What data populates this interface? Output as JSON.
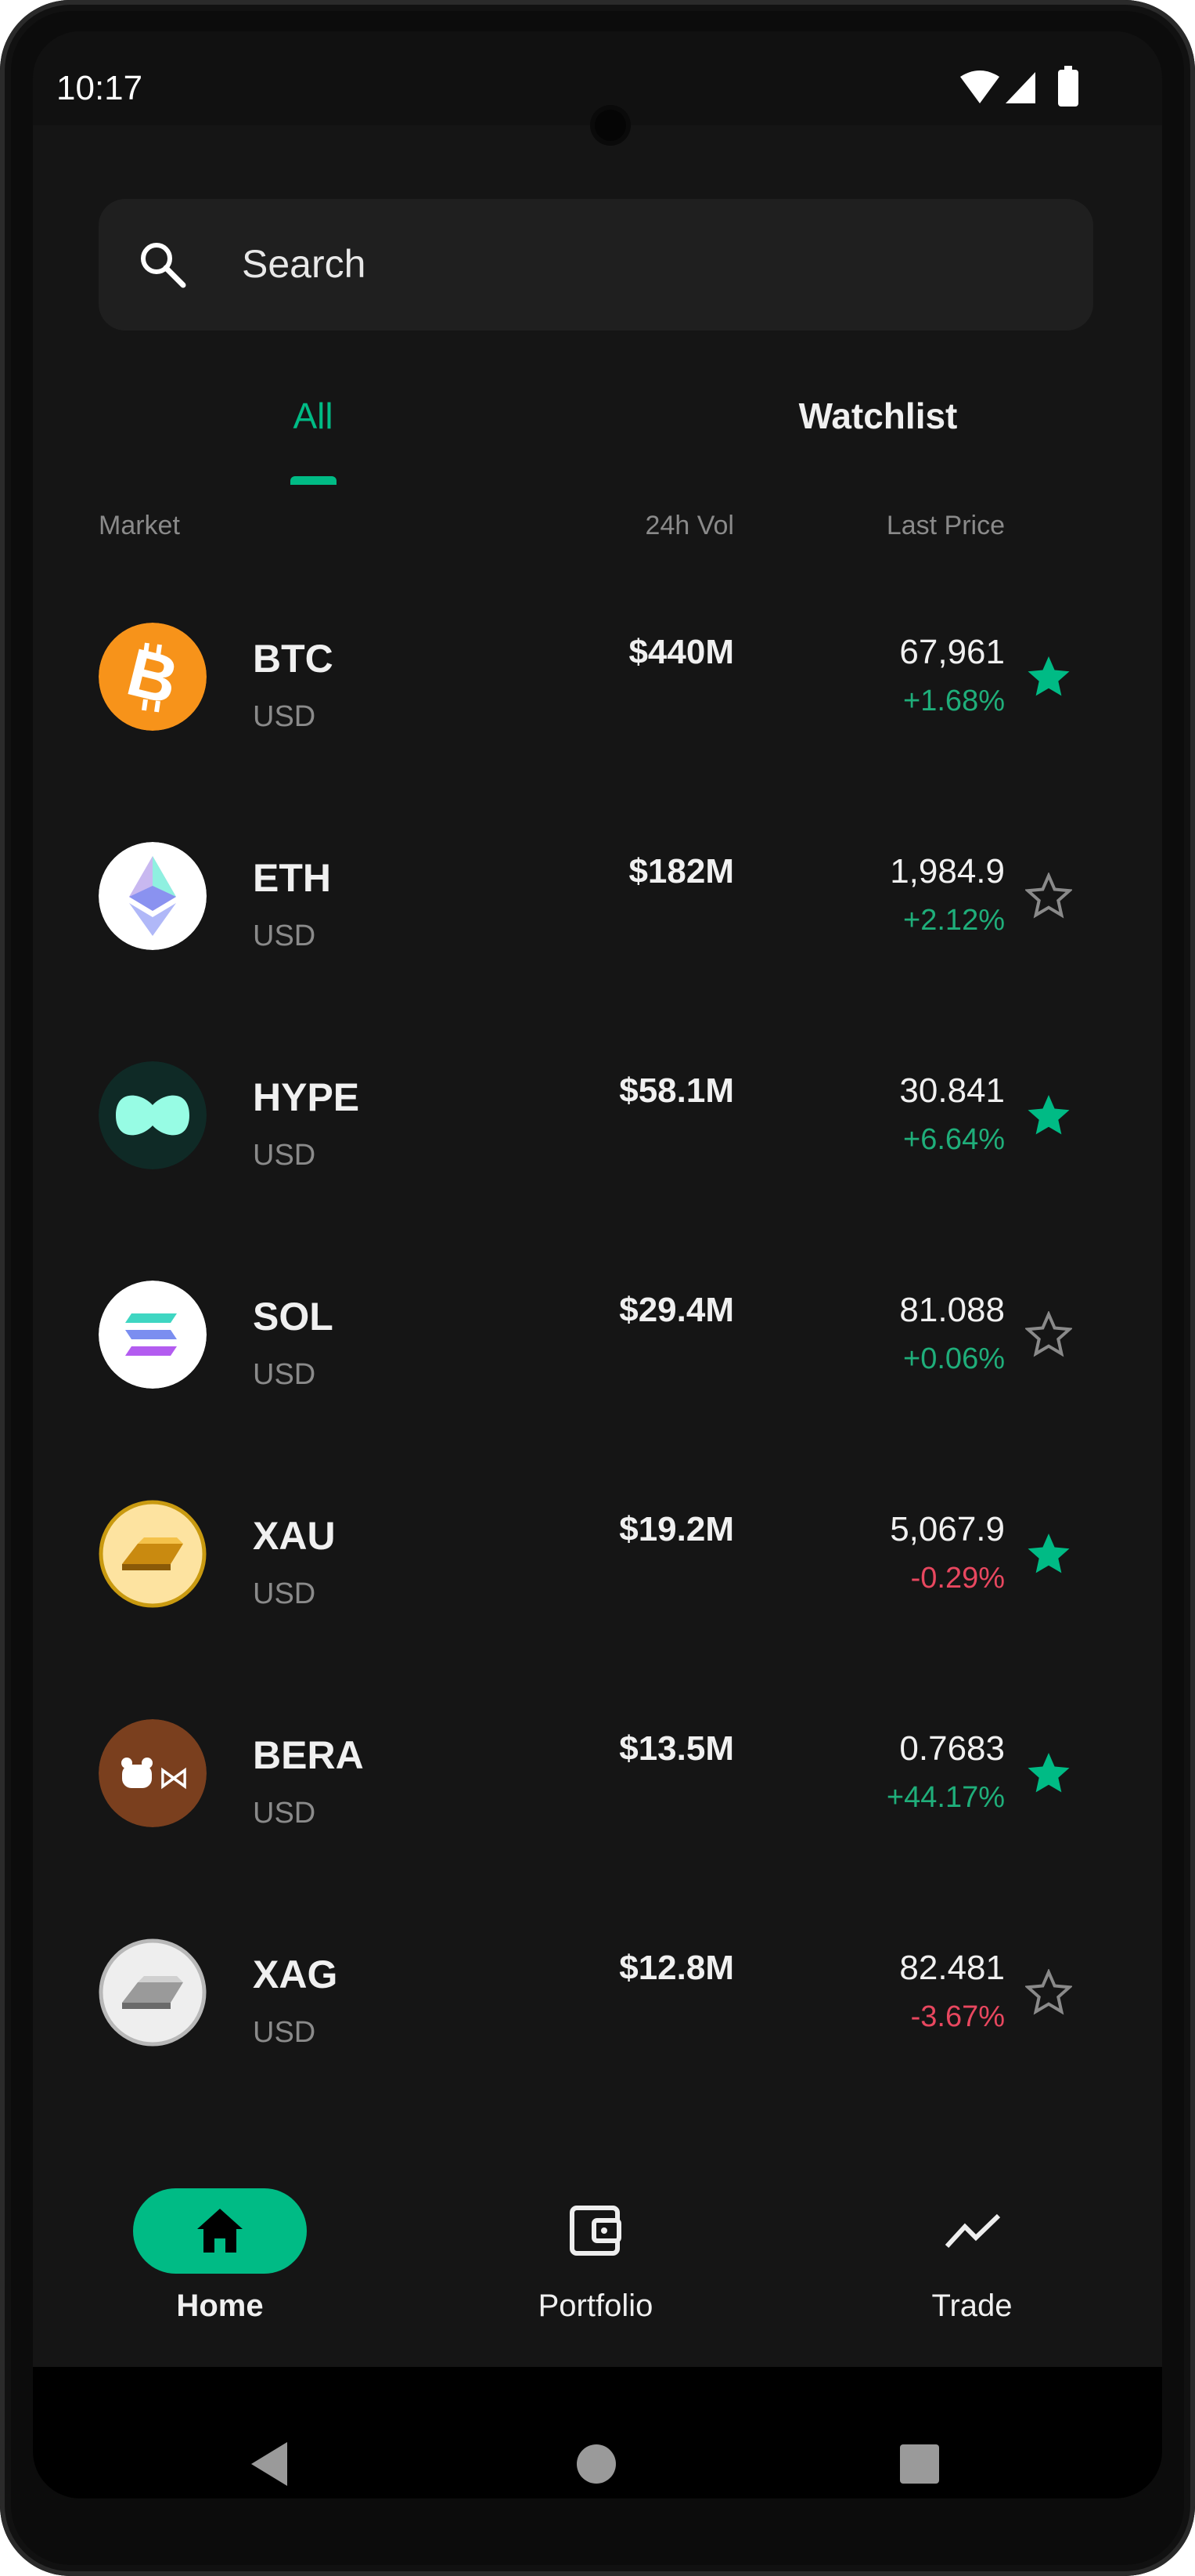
{
  "status_bar": {
    "time": "10:17",
    "icons": [
      "wifi-icon",
      "signal-icon",
      "battery-icon"
    ]
  },
  "search": {
    "placeholder": "Search",
    "icon": "search-icon"
  },
  "tabs": [
    {
      "label": "All",
      "active": true
    },
    {
      "label": "Watchlist",
      "active": false
    }
  ],
  "columns": {
    "market": "Market",
    "volume": "24h Vol",
    "price": "Last Price"
  },
  "colors": {
    "accent": "#00bb85",
    "up": "#1fae7a",
    "down": "#e8475f",
    "background": "#151515"
  },
  "markets": [
    {
      "symbol": "BTC",
      "quote": "USD",
      "volume": "$440M",
      "price": "67,961",
      "change": "+1.68%",
      "direction": "up",
      "starred": true,
      "icon": "bitcoin-icon"
    },
    {
      "symbol": "ETH",
      "quote": "USD",
      "volume": "$182M",
      "price": "1,984.9",
      "change": "+2.12%",
      "direction": "up",
      "starred": false,
      "icon": "ethereum-icon"
    },
    {
      "symbol": "HYPE",
      "quote": "USD",
      "volume": "$58.1M",
      "price": "30.841",
      "change": "+6.64%",
      "direction": "up",
      "starred": true,
      "icon": "hyperliquid-icon"
    },
    {
      "symbol": "SOL",
      "quote": "USD",
      "volume": "$29.4M",
      "price": "81.088",
      "change": "+0.06%",
      "direction": "up",
      "starred": false,
      "icon": "solana-icon"
    },
    {
      "symbol": "XAU",
      "quote": "USD",
      "volume": "$19.2M",
      "price": "5,067.9",
      "change": "-0.29%",
      "direction": "down",
      "starred": true,
      "icon": "gold-bar-icon"
    },
    {
      "symbol": "BERA",
      "quote": "USD",
      "volume": "$13.5M",
      "price": "0.7683",
      "change": "+44.17%",
      "direction": "up",
      "starred": true,
      "icon": "berachain-icon"
    },
    {
      "symbol": "XAG",
      "quote": "USD",
      "volume": "$12.8M",
      "price": "82.481",
      "change": "-3.67%",
      "direction": "down",
      "starred": false,
      "icon": "silver-bar-icon"
    }
  ],
  "bottom_nav": [
    {
      "label": "Home",
      "icon": "home-icon",
      "active": true
    },
    {
      "label": "Portfolio",
      "icon": "wallet-icon",
      "active": false
    },
    {
      "label": "Trade",
      "icon": "trend-icon",
      "active": false
    }
  ],
  "system_nav": [
    "back-icon",
    "home-circle-icon",
    "recents-icon"
  ]
}
